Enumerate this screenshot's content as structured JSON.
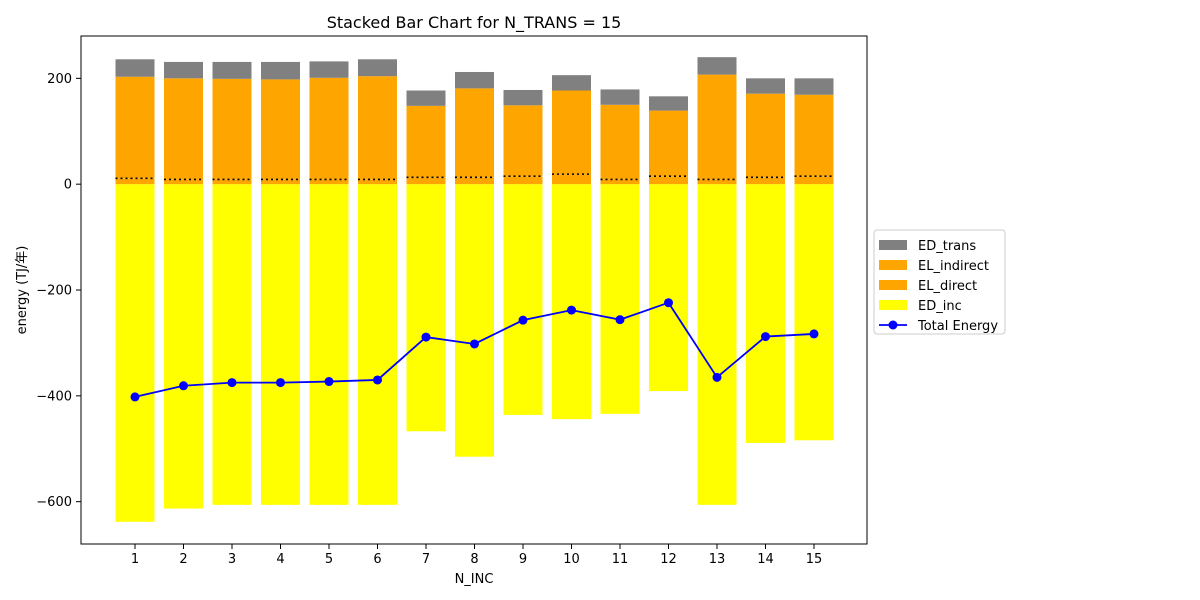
{
  "chart_data": {
    "type": "bar",
    "stacked": true,
    "title": "Stacked Bar Chart for N_TRANS = 15",
    "xlabel": "N_INC",
    "ylabel": "energy (TJ/年)",
    "categories": [
      "1",
      "2",
      "3",
      "4",
      "5",
      "6",
      "7",
      "8",
      "9",
      "10",
      "11",
      "12",
      "13",
      "14",
      "15"
    ],
    "ylim": [
      -680,
      280
    ],
    "yticks": [
      -600,
      -400,
      -200,
      0,
      200
    ],
    "ytick_labels": [
      "−600",
      "−400",
      "−200",
      "0",
      "200"
    ],
    "legend_position": "center-right",
    "series": [
      {
        "name": "ED_trans",
        "kind": "bar",
        "color": "#808080",
        "values": [
          33,
          31,
          32,
          33,
          31,
          32,
          29,
          31,
          29,
          29,
          29,
          27,
          33,
          29,
          31
        ]
      },
      {
        "name": "EL_indirect",
        "kind": "bar",
        "color": "#ffa500",
        "values": [
          192,
          191,
          190,
          189,
          192,
          195,
          135,
          168,
          134,
          158,
          141,
          124,
          198,
          158,
          154
        ]
      },
      {
        "name": "EL_direct",
        "kind": "bar",
        "color": "#ffa500",
        "values": [
          11,
          9,
          9,
          9,
          9,
          9,
          13,
          13,
          15,
          19,
          9,
          15,
          9,
          13,
          15
        ]
      },
      {
        "name": "ED_inc",
        "kind": "bar",
        "color": "#ffff00",
        "values": [
          -638,
          -613,
          -606,
          -606,
          -606,
          -606,
          -467,
          -515,
          -436,
          -444,
          -434,
          -391,
          -606,
          -489,
          -484
        ]
      },
      {
        "name": "Total Energy",
        "kind": "line",
        "color": "#0000ff",
        "values": [
          -402,
          -381,
          -375,
          -375,
          -373,
          -370,
          -289,
          -302,
          -257,
          -238,
          -256,
          -224,
          -365,
          -288,
          -283
        ]
      }
    ]
  }
}
